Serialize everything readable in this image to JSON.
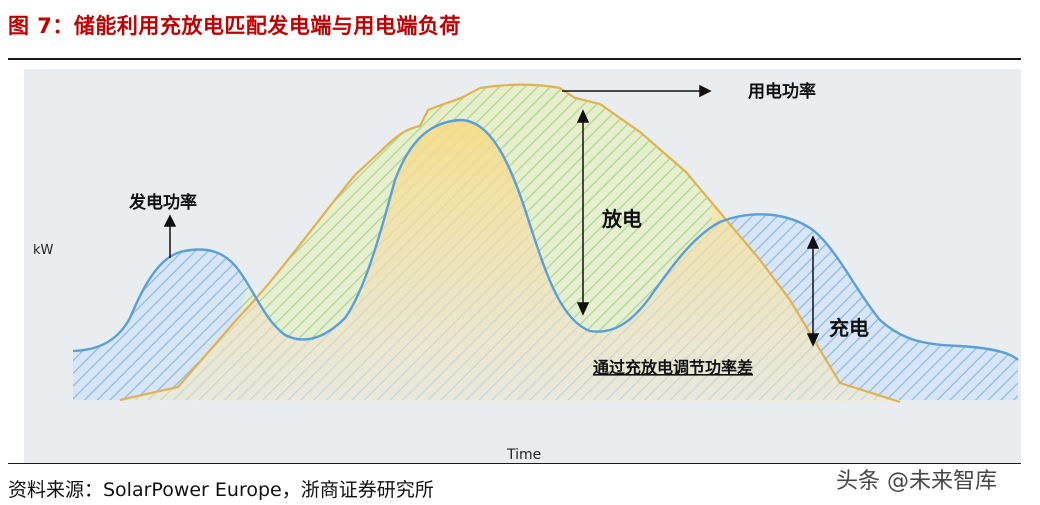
{
  "figure": {
    "title": "图 7：储能利用充放电匹配发电端与用电端负荷",
    "source": "资料来源：SolarPower Europe，浙商证券研究所",
    "watermark": "头条 @未来智库"
  },
  "chart_data": {
    "type": "area",
    "ylabel": "kW",
    "xlabel": "Time",
    "series": [
      {
        "name": "发电功率",
        "color": "#5aa0d8"
      },
      {
        "name": "用电功率",
        "color": "#e8b84a"
      }
    ],
    "annotations": {
      "generation": "发电功率",
      "consumption": "用电功率",
      "discharge": "放电",
      "charge": "充电",
      "balance": "通过充放电调节功率差"
    },
    "colors": {
      "generation_fill": "#a9c9ec",
      "consumption_fill": "#f3dc98",
      "discharge_fill": "#c9e6b5",
      "background": "#eaedf0"
    }
  }
}
